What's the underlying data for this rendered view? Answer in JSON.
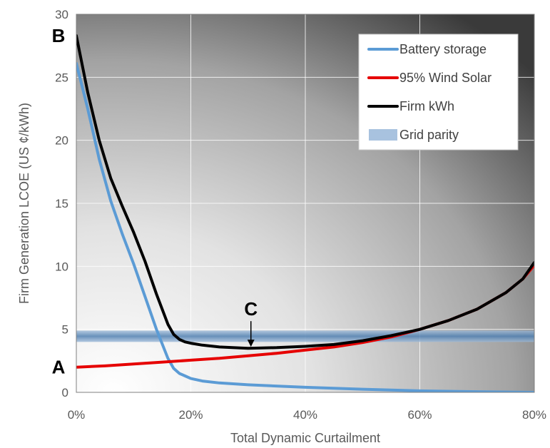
{
  "chart_data": {
    "type": "line",
    "title": "",
    "xlabel": "Total Dynamic Curtailment",
    "ylabel": "Firm Generation LCOE (US ¢/kWh)",
    "xlim": [
      0,
      80
    ],
    "ylim": [
      0,
      30
    ],
    "x_ticks": [
      0,
      20,
      40,
      60,
      80
    ],
    "x_tick_labels": [
      "0%",
      "20%",
      "40%",
      "60%",
      "80%"
    ],
    "y_ticks": [
      0,
      5,
      10,
      15,
      20,
      25,
      30
    ],
    "y_tick_labels": [
      "0",
      "5",
      "10",
      "15",
      "20",
      "25",
      "30"
    ],
    "grid": true,
    "legend_position": "top-right",
    "series": [
      {
        "name": "Battery storage",
        "color": "#5b9bd5",
        "x": [
          0,
          2,
          4,
          6,
          8,
          10,
          12,
          14,
          16,
          17,
          18,
          19,
          20,
          22,
          25,
          30,
          40,
          50,
          60,
          70,
          80
        ],
        "y": [
          26.1,
          22.5,
          18.5,
          15.2,
          12.6,
          10.2,
          7.6,
          5.0,
          2.7,
          1.9,
          1.5,
          1.3,
          1.1,
          0.9,
          0.75,
          0.6,
          0.4,
          0.25,
          0.12,
          0.05,
          0.0
        ]
      },
      {
        "name": "95% Wind Solar",
        "color": "#e60000",
        "x": [
          0,
          5,
          10,
          15,
          20,
          25,
          30,
          35,
          40,
          45,
          50,
          55,
          60,
          65,
          70,
          75,
          78,
          80
        ],
        "y": [
          2.0,
          2.1,
          2.25,
          2.4,
          2.55,
          2.7,
          2.9,
          3.1,
          3.35,
          3.6,
          3.95,
          4.4,
          5.0,
          5.7,
          6.6,
          7.9,
          9.0,
          10.1
        ]
      },
      {
        "name": "Firm kWh",
        "color": "#000000",
        "x": [
          0,
          2,
          4,
          6,
          8,
          10,
          12,
          14,
          16,
          17,
          18,
          19,
          20,
          22,
          25,
          30,
          35,
          40,
          45,
          50,
          55,
          60,
          65,
          70,
          75,
          78,
          80
        ],
        "y": [
          28.3,
          23.8,
          20.0,
          17.0,
          14.8,
          12.7,
          10.4,
          7.8,
          5.4,
          4.6,
          4.2,
          4.0,
          3.9,
          3.75,
          3.6,
          3.5,
          3.55,
          3.65,
          3.8,
          4.1,
          4.5,
          5.0,
          5.7,
          6.6,
          7.9,
          9.0,
          10.3
        ]
      },
      {
        "name": "Grid parity",
        "color": "#5b8ebd",
        "band": [
          4.0,
          4.9
        ]
      }
    ],
    "annotations": [
      {
        "label": "A",
        "x": 0,
        "y": 2.0
      },
      {
        "label": "B",
        "x": 0,
        "y": 28.3
      },
      {
        "label": "C",
        "x": 30.5,
        "y": 3.5,
        "arrow": true
      }
    ]
  }
}
